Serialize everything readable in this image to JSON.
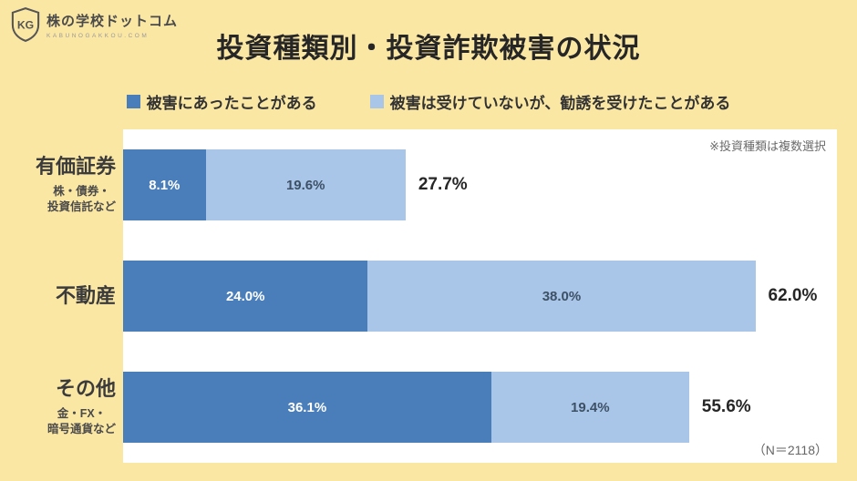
{
  "title": "投資種類別・投資詐欺被害の状況",
  "logo": {
    "name": "株の学校ドットコム",
    "subtext": "KABUNOGAKKOU.COM",
    "monogram": "KG"
  },
  "legend": [
    {
      "label": "被害にあったことがある",
      "color": "#4A7EBA"
    },
    {
      "label": "被害は受けていないが、勧誘を受けたことがある",
      "color": "#A9C5E8"
    }
  ],
  "note": "※投資種類は複数選択",
  "sample_note": "（N＝2118）",
  "colors": {
    "background": "#FBE7A4",
    "panel": "#FFFFFF",
    "bar_dark": "#4A7EBA",
    "bar_light": "#A9C5E8"
  },
  "chart_data": {
    "type": "bar",
    "orientation": "horizontal",
    "stacked": true,
    "title": "投資種類別・投資詐欺被害の状況",
    "categories": [
      "有価証券",
      "不動産",
      "その他"
    ],
    "category_sublabels": [
      "株・債券・\n投資信託など",
      "",
      "金・FX・\n暗号通貨など"
    ],
    "series": [
      {
        "name": "被害にあったことがある",
        "color": "#4A7EBA",
        "values": [
          8.1,
          24.0,
          36.1
        ]
      },
      {
        "name": "被害は受けていないが、勧誘を受けたことがある",
        "color": "#A9C5E8",
        "values": [
          19.6,
          38.0,
          19.4
        ]
      }
    ],
    "segment_labels": [
      [
        "8.1%",
        "19.6%"
      ],
      [
        "24.0%",
        "38.0%"
      ],
      [
        "36.1%",
        "19.4%"
      ]
    ],
    "totals": [
      27.7,
      62.0,
      55.6
    ],
    "total_labels": [
      "27.7%",
      "62.0%",
      "55.6%"
    ],
    "xlim": [
      0,
      70
    ],
    "xlabel": "",
    "ylabel": "",
    "grid": false,
    "legend_position": "top",
    "annotations": [
      "※投資種類は複数選択",
      "（N＝2118）"
    ]
  }
}
